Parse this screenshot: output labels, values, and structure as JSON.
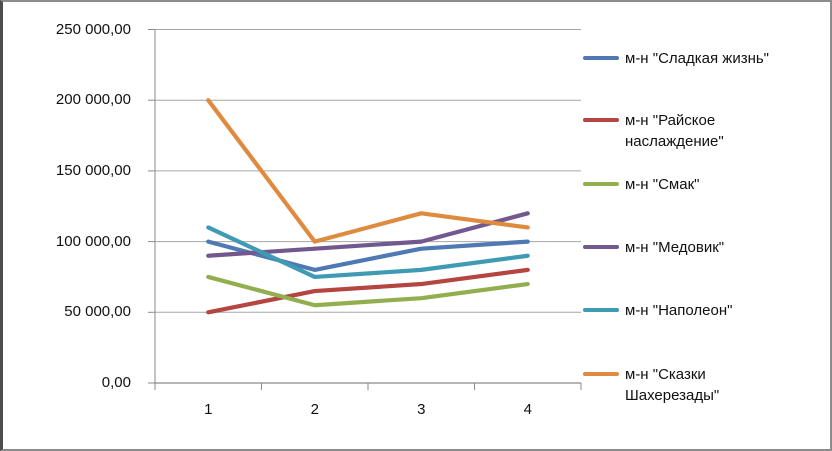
{
  "chart_data": {
    "type": "line",
    "title": "",
    "xlabel": "",
    "ylabel": "",
    "categories": [
      "1",
      "2",
      "3",
      "4"
    ],
    "series": [
      {
        "name": "м-н \"Сладкая жизнь\"",
        "color": "#4E79B2",
        "values": [
          100000,
          80000,
          95000,
          100000
        ],
        "legend_lines": [
          "м-н \"Сладкая жизнь\""
        ]
      },
      {
        "name": "м-н \"Райское наслаждение\"",
        "color": "#B5453F",
        "values": [
          50000,
          65000,
          70000,
          80000
        ],
        "legend_lines": [
          "м-н \"Райское",
          "наслаждение\""
        ]
      },
      {
        "name": "м-н \"Смак\"",
        "color": "#92AE4F",
        "values": [
          75000,
          55000,
          60000,
          70000
        ],
        "legend_lines": [
          "м-н \"Смак\""
        ]
      },
      {
        "name": "м-н \"Медовик\"",
        "color": "#73588F",
        "values": [
          90000,
          95000,
          100000,
          120000
        ],
        "legend_lines": [
          "м-н \"Медовик\""
        ]
      },
      {
        "name": "м-н \"Наполеон\"",
        "color": "#3F9BB3",
        "values": [
          110000,
          75000,
          80000,
          90000
        ],
        "legend_lines": [
          "м-н \"Наполеон\""
        ]
      },
      {
        "name": "м-н \"Сказки Шахерезады\"",
        "color": "#DE8B3F",
        "values": [
          200000,
          100000,
          120000,
          110000
        ],
        "legend_lines": [
          "м-н \"Сказки",
          "Шахерезады\""
        ]
      }
    ],
    "y_ticks": [
      "0,00",
      "50 000,00",
      "100 000,00",
      "150 000,00",
      "200 000,00",
      "250 000,00"
    ],
    "y_tick_values": [
      0,
      50000,
      100000,
      150000,
      200000,
      250000
    ],
    "ylim": [
      0,
      250000
    ],
    "grid": true,
    "legend_position": "right"
  }
}
